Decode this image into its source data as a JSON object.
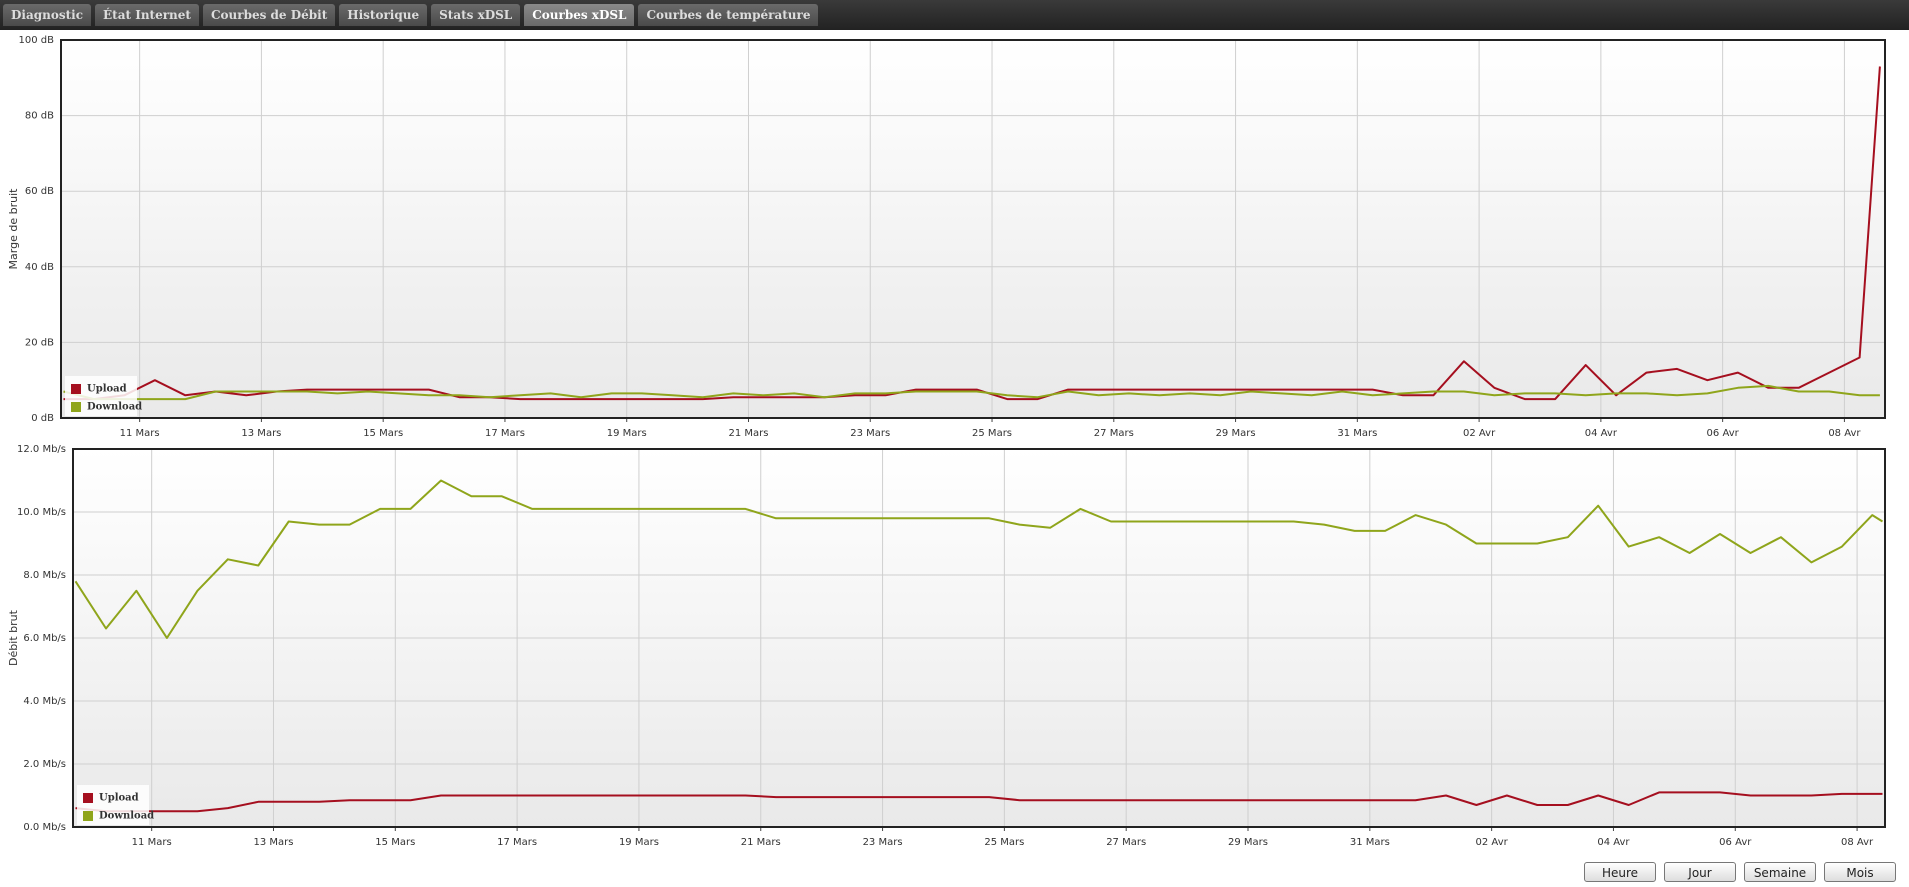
{
  "tabs": [
    {
      "label": "Diagnostic",
      "active": false
    },
    {
      "label": "État Internet",
      "active": false
    },
    {
      "label": "Courbes de Débit",
      "active": false
    },
    {
      "label": "Historique",
      "active": false
    },
    {
      "label": "Stats xDSL",
      "active": false
    },
    {
      "label": "Courbes xDSL",
      "active": true
    },
    {
      "label": "Courbes de température",
      "active": false
    }
  ],
  "chart_data": [
    {
      "type": "line",
      "y_label": "Marge de bruit",
      "grid": true,
      "legend": "lower left",
      "x": [
        "03-09T18",
        "03-10T06",
        "03-10T18",
        "03-11T06",
        "03-11T18",
        "03-12T06",
        "03-12T18",
        "03-13T06",
        "03-13T18",
        "03-14T06",
        "03-14T18",
        "03-15T06",
        "03-15T18",
        "03-16T06",
        "03-16T18",
        "03-17T06",
        "03-17T18",
        "03-18T06",
        "03-18T18",
        "03-19T06",
        "03-19T18",
        "03-20T06",
        "03-20T18",
        "03-21T06",
        "03-21T18",
        "03-22T06",
        "03-22T18",
        "03-23T06",
        "03-23T18",
        "03-24T06",
        "03-24T18",
        "03-25T06",
        "03-25T18",
        "03-26T06",
        "03-26T18",
        "03-27T06",
        "03-27T18",
        "03-28T06",
        "03-28T18",
        "03-29T06",
        "03-29T18",
        "03-30T06",
        "03-30T18",
        "03-31T06",
        "03-31T18",
        "04-01T06",
        "04-01T18",
        "04-02T06",
        "04-02T18",
        "04-03T06",
        "04-03T18",
        "04-04T06",
        "04-04T18",
        "04-05T06",
        "04-05T18",
        "04-06T06",
        "04-06T18",
        "04-07T06",
        "04-07T18",
        "04-08T06",
        "04-08T14"
      ],
      "series": [
        {
          "name": "Upload",
          "color": "#a50f1f",
          "values": [
            5,
            5,
            6,
            10,
            6,
            7,
            6,
            7,
            7.5,
            7.5,
            7.5,
            7.5,
            7.5,
            5.5,
            5.5,
            5,
            5,
            5,
            5,
            5,
            5,
            5,
            5.5,
            5.5,
            5.5,
            5.5,
            6,
            6,
            7.5,
            7.5,
            7.5,
            5,
            5,
            7.5,
            7.5,
            7.5,
            7.5,
            7.5,
            7.5,
            7.5,
            7.5,
            7.5,
            7.5,
            7.5,
            6,
            6,
            15,
            8,
            5,
            5,
            14,
            6,
            12,
            13,
            10,
            12,
            8,
            8,
            12,
            16,
            93
          ]
        },
        {
          "name": "Download",
          "color": "#8fa51b",
          "values": [
            7,
            5,
            5,
            5,
            5,
            7,
            7,
            7,
            7,
            6.5,
            7,
            6.5,
            6,
            6,
            5.5,
            6,
            6.5,
            5.5,
            6.5,
            6.5,
            6,
            5.5,
            6.5,
            6,
            6.5,
            5.5,
            6.5,
            6.5,
            7,
            7,
            7,
            6,
            5.5,
            7,
            6,
            6.5,
            6,
            6.5,
            6,
            7,
            6.5,
            6,
            7,
            6,
            6.5,
            7,
            7,
            6,
            6.5,
            6.5,
            6,
            6.5,
            6.5,
            6,
            6.5,
            8,
            8.5,
            7,
            7,
            6,
            6
          ]
        }
      ],
      "xlim": [
        "03-09T17",
        "04-08T16"
      ],
      "xticks": [
        {
          "value": "03-11",
          "label": "11 Mars"
        },
        {
          "value": "03-13",
          "label": "13 Mars"
        },
        {
          "value": "03-15",
          "label": "15 Mars"
        },
        {
          "value": "03-17",
          "label": "17 Mars"
        },
        {
          "value": "03-19",
          "label": "19 Mars"
        },
        {
          "value": "03-21",
          "label": "21 Mars"
        },
        {
          "value": "03-23",
          "label": "23 Mars"
        },
        {
          "value": "03-25",
          "label": "25 Mars"
        },
        {
          "value": "03-27",
          "label": "27 Mars"
        },
        {
          "value": "03-29",
          "label": "29 Mars"
        },
        {
          "value": "03-31",
          "label": "31 Mars"
        },
        {
          "value": "04-02",
          "label": "02 Avr"
        },
        {
          "value": "04-04",
          "label": "04 Avr"
        },
        {
          "value": "04-06",
          "label": "06 Avr"
        },
        {
          "value": "04-08",
          "label": "08 Avr"
        }
      ],
      "ylim": [
        0,
        100
      ],
      "yticks": [
        {
          "value": 0,
          "label": "0 dB"
        },
        {
          "value": 20,
          "label": "20 dB"
        },
        {
          "value": 40,
          "label": "40 dB"
        },
        {
          "value": 60,
          "label": "60 dB"
        },
        {
          "value": 80,
          "label": "80 dB"
        },
        {
          "value": 100,
          "label": "100 dB"
        }
      ]
    },
    {
      "type": "line",
      "y_label": "Débit brut",
      "grid": true,
      "legend": "lower left",
      "x": [
        "03-09T18",
        "03-10T06",
        "03-10T18",
        "03-11T06",
        "03-11T18",
        "03-12T06",
        "03-12T18",
        "03-13T06",
        "03-13T18",
        "03-14T06",
        "03-14T18",
        "03-15T06",
        "03-15T18",
        "03-16T06",
        "03-16T18",
        "03-17T06",
        "03-17T18",
        "03-18T06",
        "03-18T18",
        "03-19T06",
        "03-19T18",
        "03-20T06",
        "03-20T18",
        "03-21T06",
        "03-21T18",
        "03-22T06",
        "03-22T18",
        "03-23T06",
        "03-23T18",
        "03-24T06",
        "03-24T18",
        "03-25T06",
        "03-25T18",
        "03-26T06",
        "03-26T18",
        "03-27T06",
        "03-27T18",
        "03-28T06",
        "03-28T18",
        "03-29T06",
        "03-29T18",
        "03-30T06",
        "03-30T18",
        "03-31T06",
        "03-31T18",
        "04-01T06",
        "04-01T18",
        "04-02T06",
        "04-02T18",
        "04-03T06",
        "04-03T18",
        "04-04T06",
        "04-04T18",
        "04-05T06",
        "04-05T18",
        "04-06T06",
        "04-06T18",
        "04-07T06",
        "04-07T18",
        "04-08T06",
        "04-08T10"
      ],
      "series": [
        {
          "name": "Upload",
          "color": "#a50f1f",
          "values": [
            0.6,
            0.5,
            0.5,
            0.5,
            0.5,
            0.6,
            0.8,
            0.8,
            0.8,
            0.85,
            0.85,
            0.85,
            1,
            1,
            1,
            1,
            1,
            1,
            1,
            1,
            1,
            1,
            1,
            0.95,
            0.95,
            0.95,
            0.95,
            0.95,
            0.95,
            0.95,
            0.95,
            0.85,
            0.85,
            0.85,
            0.85,
            0.85,
            0.85,
            0.85,
            0.85,
            0.85,
            0.85,
            0.85,
            0.85,
            0.85,
            0.85,
            1,
            0.7,
            1,
            0.7,
            0.7,
            1,
            0.7,
            1.1,
            1.1,
            1.1,
            1,
            1,
            1,
            1.05,
            1.05,
            1.05
          ]
        },
        {
          "name": "Download",
          "color": "#8fa51b",
          "values": [
            7.8,
            6.3,
            7.5,
            6,
            7.5,
            8.5,
            8.3,
            9.7,
            9.6,
            9.6,
            10.1,
            10.1,
            11,
            10.5,
            10.5,
            10.1,
            10.1,
            10.1,
            10.1,
            10.1,
            10.1,
            10.1,
            10.1,
            9.8,
            9.8,
            9.8,
            9.8,
            9.8,
            9.8,
            9.8,
            9.8,
            9.6,
            9.5,
            10.1,
            9.7,
            9.7,
            9.7,
            9.7,
            9.7,
            9.7,
            9.7,
            9.6,
            9.4,
            9.4,
            9.9,
            9.6,
            9,
            9,
            9,
            9.2,
            10.2,
            8.9,
            9.2,
            8.7,
            9.3,
            8.7,
            9.2,
            8.4,
            8.9,
            9.9,
            9.7
          ]
        }
      ],
      "xlim": [
        "03-09T17",
        "04-08T11"
      ],
      "xticks": [
        {
          "value": "03-11",
          "label": "11 Mars"
        },
        {
          "value": "03-13",
          "label": "13 Mars"
        },
        {
          "value": "03-15",
          "label": "15 Mars"
        },
        {
          "value": "03-17",
          "label": "17 Mars"
        },
        {
          "value": "03-19",
          "label": "19 Mars"
        },
        {
          "value": "03-21",
          "label": "21 Mars"
        },
        {
          "value": "03-23",
          "label": "23 Mars"
        },
        {
          "value": "03-25",
          "label": "25 Mars"
        },
        {
          "value": "03-27",
          "label": "27 Mars"
        },
        {
          "value": "03-29",
          "label": "29 Mars"
        },
        {
          "value": "03-31",
          "label": "31 Mars"
        },
        {
          "value": "04-02",
          "label": "02 Avr"
        },
        {
          "value": "04-04",
          "label": "04 Avr"
        },
        {
          "value": "04-06",
          "label": "06 Avr"
        },
        {
          "value": "04-08",
          "label": "08 Avr"
        }
      ],
      "ylim": [
        0,
        12
      ],
      "yticks": [
        {
          "value": 0,
          "label": "0.0 Mb/s"
        },
        {
          "value": 2,
          "label": "2.0 Mb/s"
        },
        {
          "value": 4,
          "label": "4.0 Mb/s"
        },
        {
          "value": 6,
          "label": "6.0 Mb/s"
        },
        {
          "value": 8,
          "label": "8.0 Mb/s"
        },
        {
          "value": 10,
          "label": "10.0 Mb/s"
        },
        {
          "value": 12,
          "label": "12.0 Mb/s"
        }
      ]
    }
  ],
  "buttons": [
    "Heure",
    "Jour",
    "Semaine",
    "Mois"
  ]
}
